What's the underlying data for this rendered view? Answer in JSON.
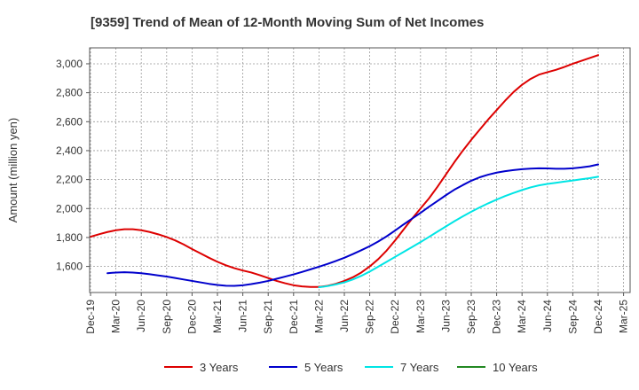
{
  "chart_data": {
    "type": "line",
    "title": "[9359]  Trend of Mean of 12-Month Moving Sum of Net Incomes",
    "xlabel": "",
    "ylabel": "Amount (million yen)",
    "x_ticks": [
      "Dec-19",
      "Mar-20",
      "Jun-20",
      "Sep-20",
      "Dec-20",
      "Mar-21",
      "Jun-21",
      "Sep-21",
      "Dec-21",
      "Mar-22",
      "Jun-22",
      "Sep-22",
      "Dec-22",
      "Mar-23",
      "Jun-23",
      "Sep-23",
      "Dec-23",
      "Mar-24",
      "Jun-24",
      "Sep-24",
      "Dec-24",
      "Mar-25"
    ],
    "y_ticks": [
      1600,
      1800,
      2000,
      2200,
      2400,
      2600,
      2800,
      3000
    ],
    "y_tick_labels": [
      "1,600",
      "1,800",
      "2,000",
      "2,200",
      "2,400",
      "2,600",
      "2,800",
      "3,000"
    ],
    "ylim": [
      1420,
      3110
    ],
    "grid": true,
    "legend_position": "bottom",
    "series": [
      {
        "name": "3 Years",
        "color": "#dd0000",
        "points": [
          [
            "Dec-19",
            1805
          ],
          [
            "Jan-20",
            1822
          ],
          [
            "Feb-20",
            1838
          ],
          [
            "Mar-20",
            1850
          ],
          [
            "Apr-20",
            1857
          ],
          [
            "May-20",
            1857
          ],
          [
            "Jun-20",
            1850
          ],
          [
            "Jul-20",
            1838
          ],
          [
            "Aug-20",
            1822
          ],
          [
            "Sep-20",
            1803
          ],
          [
            "Oct-20",
            1780
          ],
          [
            "Nov-20",
            1752
          ],
          [
            "Dec-20",
            1720
          ],
          [
            "Jan-21",
            1690
          ],
          [
            "Feb-21",
            1660
          ],
          [
            "Mar-21",
            1632
          ],
          [
            "Apr-21",
            1608
          ],
          [
            "May-21",
            1588
          ],
          [
            "Jun-21",
            1572
          ],
          [
            "Jul-21",
            1558
          ],
          [
            "Aug-21",
            1540
          ],
          [
            "Sep-21",
            1520
          ],
          [
            "Oct-21",
            1500
          ],
          [
            "Nov-21",
            1484
          ],
          [
            "Dec-21",
            1470
          ],
          [
            "Jan-22",
            1462
          ],
          [
            "Feb-22",
            1458
          ],
          [
            "Mar-22",
            1458
          ],
          [
            "Apr-22",
            1466
          ],
          [
            "May-22",
            1480
          ],
          [
            "Jun-22",
            1500
          ],
          [
            "Jul-22",
            1525
          ],
          [
            "Aug-22",
            1558
          ],
          [
            "Sep-22",
            1600
          ],
          [
            "Oct-22",
            1650
          ],
          [
            "Nov-22",
            1710
          ],
          [
            "Dec-22",
            1780
          ],
          [
            "Jan-23",
            1855
          ],
          [
            "Feb-23",
            1930
          ],
          [
            "Mar-23",
            2000
          ],
          [
            "Apr-23",
            2070
          ],
          [
            "May-23",
            2150
          ],
          [
            "Jun-23",
            2235
          ],
          [
            "Jul-23",
            2320
          ],
          [
            "Aug-23",
            2400
          ],
          [
            "Sep-23",
            2475
          ],
          [
            "Oct-23",
            2545
          ],
          [
            "Nov-23",
            2615
          ],
          [
            "Dec-23",
            2680
          ],
          [
            "Jan-24",
            2745
          ],
          [
            "Feb-24",
            2805
          ],
          [
            "Mar-24",
            2855
          ],
          [
            "Apr-24",
            2895
          ],
          [
            "May-24",
            2925
          ],
          [
            "Jun-24",
            2942
          ],
          [
            "Jul-24",
            2958
          ],
          [
            "Aug-24",
            2978
          ],
          [
            "Sep-24",
            3000
          ],
          [
            "Oct-24",
            3020
          ],
          [
            "Nov-24",
            3040
          ],
          [
            "Dec-24",
            3060
          ]
        ]
      },
      {
        "name": "5 Years",
        "color": "#0000cc",
        "points": [
          [
            "Feb-20",
            1553
          ],
          [
            "Mar-20",
            1558
          ],
          [
            "Apr-20",
            1560
          ],
          [
            "May-20",
            1558
          ],
          [
            "Jun-20",
            1553
          ],
          [
            "Jul-20",
            1546
          ],
          [
            "Aug-20",
            1538
          ],
          [
            "Sep-20",
            1530
          ],
          [
            "Oct-20",
            1520
          ],
          [
            "Nov-20",
            1510
          ],
          [
            "Dec-20",
            1500
          ],
          [
            "Jan-21",
            1490
          ],
          [
            "Feb-21",
            1480
          ],
          [
            "Mar-21",
            1472
          ],
          [
            "Apr-21",
            1467
          ],
          [
            "May-21",
            1466
          ],
          [
            "Jun-21",
            1470
          ],
          [
            "Jul-21",
            1478
          ],
          [
            "Aug-21",
            1488
          ],
          [
            "Sep-21",
            1500
          ],
          [
            "Oct-21",
            1515
          ],
          [
            "Nov-21",
            1530
          ],
          [
            "Dec-21",
            1545
          ],
          [
            "Jan-22",
            1562
          ],
          [
            "Feb-22",
            1580
          ],
          [
            "Mar-22",
            1598
          ],
          [
            "Apr-22",
            1617
          ],
          [
            "May-22",
            1638
          ],
          [
            "Jun-22",
            1660
          ],
          [
            "Jul-22",
            1685
          ],
          [
            "Aug-22",
            1712
          ],
          [
            "Sep-22",
            1740
          ],
          [
            "Oct-22",
            1772
          ],
          [
            "Nov-22",
            1808
          ],
          [
            "Dec-22",
            1848
          ],
          [
            "Jan-23",
            1890
          ],
          [
            "Feb-23",
            1930
          ],
          [
            "Mar-23",
            1970
          ],
          [
            "Apr-23",
            2012
          ],
          [
            "May-23",
            2052
          ],
          [
            "Jun-23",
            2092
          ],
          [
            "Jul-23",
            2130
          ],
          [
            "Aug-23",
            2162
          ],
          [
            "Sep-23",
            2192
          ],
          [
            "Oct-23",
            2216
          ],
          [
            "Nov-23",
            2234
          ],
          [
            "Dec-23",
            2248
          ],
          [
            "Jan-24",
            2258
          ],
          [
            "Feb-24",
            2266
          ],
          [
            "Mar-24",
            2272
          ],
          [
            "Apr-24",
            2276
          ],
          [
            "May-24",
            2278
          ],
          [
            "Jun-24",
            2277
          ],
          [
            "Jul-24",
            2275
          ],
          [
            "Aug-24",
            2275
          ],
          [
            "Sep-24",
            2278
          ],
          [
            "Oct-24",
            2284
          ],
          [
            "Nov-24",
            2292
          ],
          [
            "Dec-24",
            2305
          ]
        ]
      },
      {
        "name": "7 Years",
        "color": "#00e5e5",
        "points": [
          [
            "Mar-22",
            1456
          ],
          [
            "Apr-22",
            1464
          ],
          [
            "May-22",
            1476
          ],
          [
            "Jun-22",
            1490
          ],
          [
            "Jul-22",
            1510
          ],
          [
            "Aug-22",
            1535
          ],
          [
            "Sep-22",
            1565
          ],
          [
            "Oct-22",
            1598
          ],
          [
            "Nov-22",
            1632
          ],
          [
            "Dec-22",
            1666
          ],
          [
            "Jan-23",
            1700
          ],
          [
            "Feb-23",
            1734
          ],
          [
            "Mar-23",
            1768
          ],
          [
            "Apr-23",
            1804
          ],
          [
            "May-23",
            1840
          ],
          [
            "Jun-23",
            1876
          ],
          [
            "Jul-23",
            1912
          ],
          [
            "Aug-23",
            1946
          ],
          [
            "Sep-23",
            1978
          ],
          [
            "Oct-23",
            2008
          ],
          [
            "Nov-23",
            2036
          ],
          [
            "Dec-23",
            2062
          ],
          [
            "Jan-24",
            2086
          ],
          [
            "Feb-24",
            2108
          ],
          [
            "Mar-24",
            2128
          ],
          [
            "Apr-24",
            2146
          ],
          [
            "May-24",
            2160
          ],
          [
            "Jun-24",
            2170
          ],
          [
            "Jul-24",
            2178
          ],
          [
            "Aug-24",
            2186
          ],
          [
            "Sep-24",
            2194
          ],
          [
            "Oct-24",
            2202
          ],
          [
            "Nov-24",
            2210
          ],
          [
            "Dec-24",
            2220
          ]
        ]
      },
      {
        "name": "10 Years",
        "color": "#228822",
        "points": []
      }
    ]
  }
}
